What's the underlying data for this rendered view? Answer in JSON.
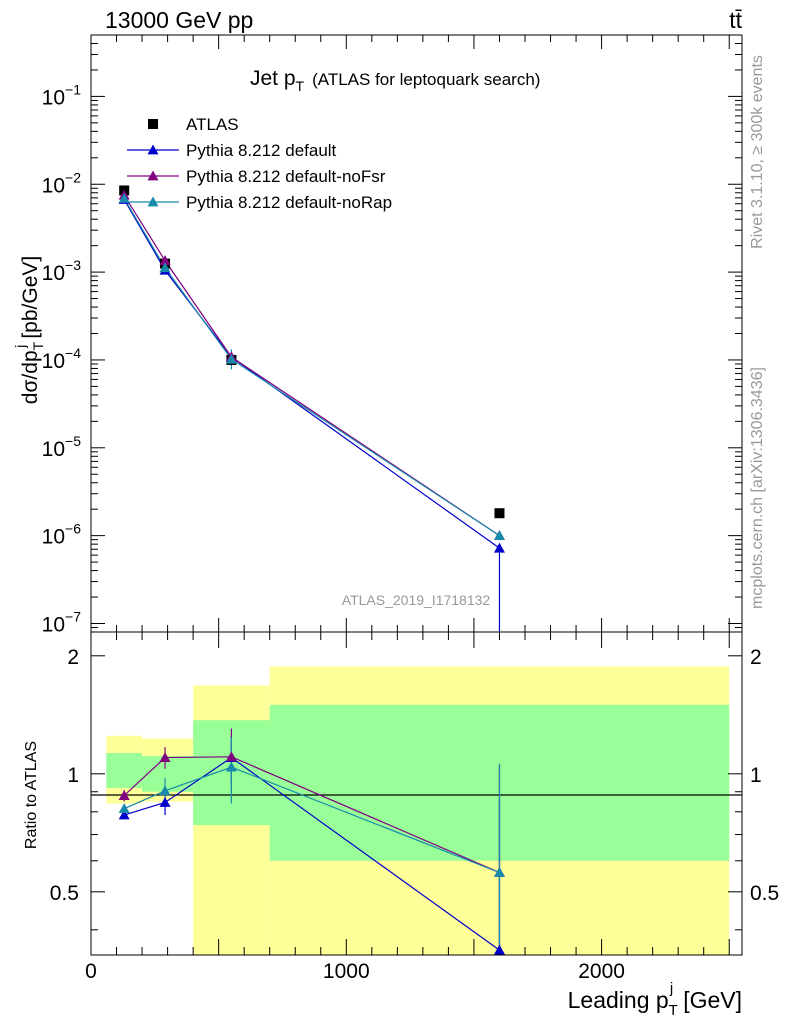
{
  "header": {
    "left": "13000 GeV pp",
    "right": "tt̄"
  },
  "title": {
    "main": "Jet p",
    "sub": "T",
    "rest": "(ATLAS for leptoquark search)"
  },
  "side_labels": {
    "rivet": "Rivet 3.1.10, ≥ 300k events",
    "mcplots": "mcplots.cern.ch [arXiv:1306.3436]"
  },
  "watermark": "ATLAS_2019_I1718132",
  "axes": {
    "ylabel_main_pre": "dσ/dp",
    "ylabel_main_sup": "j",
    "ylabel_main_sub": "T",
    "ylabel_main_post": "[pb/GeV]",
    "ylabel_ratio": "Ratio to ATLAS",
    "xlabel_pre": "Leading p",
    "xlabel_sup": "j",
    "xlabel_sub": "T",
    "xlabel_post": "[GeV]"
  },
  "chart_data": [
    {
      "type": "scatter",
      "title": "Jet pT (ATLAS for leptoquark search)",
      "xlim": [
        0,
        2550
      ],
      "ylim": [
        8e-08,
        0.5
      ],
      "yscale": "log",
      "ytick_labels": [
        {
          "base": "10",
          "exp": "−7",
          "value": 1e-07
        },
        {
          "base": "10",
          "exp": "−6",
          "value": 1e-06
        },
        {
          "base": "10",
          "exp": "−5",
          "value": 1e-05
        },
        {
          "base": "10",
          "exp": "−4",
          "value": 0.0001
        },
        {
          "base": "10",
          "exp": "−3",
          "value": 0.001
        },
        {
          "base": "10",
          "exp": "−2",
          "value": 0.01
        },
        {
          "base": "10",
          "exp": "−1",
          "value": 0.1
        }
      ],
      "legend_position": "top-left",
      "series": [
        {
          "name": "ATLAS",
          "marker": "square",
          "color": "#000000",
          "x": [
            130,
            290,
            550,
            1600
          ],
          "y": [
            0.0085,
            0.00125,
            0.0001,
            1.8e-06
          ]
        },
        {
          "name": "Pythia 8.212 default",
          "marker": "triangle",
          "color": "#0000cc",
          "x": [
            130,
            290,
            550,
            1600
          ],
          "y": [
            0.0067,
            0.00105,
            0.000108,
            7.2e-07
          ]
        },
        {
          "name": "Pythia 8.212 default-noFsr",
          "marker": "triangle",
          "color": "#800080",
          "x": [
            130,
            290,
            550,
            1600
          ],
          "y": [
            0.0075,
            0.00135,
            0.000108,
            1e-06
          ]
        },
        {
          "name": "Pythia 8.212 default-noRap",
          "marker": "triangle",
          "color": "#1a8aab",
          "x": [
            130,
            290,
            550,
            1600
          ],
          "y": [
            0.0069,
            0.00112,
            0.000102,
            1e-06
          ]
        }
      ]
    },
    {
      "type": "line",
      "xlim": [
        0,
        2550
      ],
      "ylim": [
        0.345,
        2.3
      ],
      "yscale": "log",
      "ytick_labels": [
        {
          "label": "0.5",
          "value": 0.5
        },
        {
          "label": "1",
          "value": 1
        },
        {
          "label": "2",
          "value": 2
        }
      ],
      "xtick_labels": [
        {
          "label": "0",
          "value": 0
        },
        {
          "label": "1000",
          "value": 1000
        },
        {
          "label": "2000",
          "value": 2000
        }
      ],
      "bands": [
        {
          "x0": 60,
          "x1": 200,
          "yellow": [
            0.84,
            1.25
          ],
          "green": [
            0.92,
            1.13
          ]
        },
        {
          "x0": 200,
          "x1": 400,
          "yellow": [
            0.85,
            1.23
          ],
          "green": [
            0.9,
            1.11
          ]
        },
        {
          "x0": 400,
          "x1": 700,
          "yellow": [
            0.345,
            1.68
          ],
          "green": [
            0.74,
            1.37
          ]
        },
        {
          "x0": 700,
          "x1": 2500,
          "yellow": [
            0.345,
            1.88
          ],
          "green": [
            0.6,
            1.5
          ]
        }
      ],
      "series": [
        {
          "name": "Pythia 8.212 default",
          "color": "#0000cc",
          "x": [
            130,
            290,
            550,
            1600
          ],
          "y": [
            0.785,
            0.845,
            1.1,
            0.355
          ],
          "err": [
            0.02,
            0.06,
            0.15,
            0.5
          ]
        },
        {
          "name": "Pythia 8.212 default-noFsr",
          "color": "#800080",
          "x": [
            130,
            290,
            550,
            1600
          ],
          "y": [
            0.88,
            1.1,
            1.105,
            0.56
          ],
          "err": [
            0.03,
            0.07,
            0.2,
            0.5
          ]
        },
        {
          "name": "Pythia 8.212 default-noRap",
          "color": "#1a8aab",
          "x": [
            130,
            290,
            550,
            1600
          ],
          "y": [
            0.815,
            0.905,
            1.04,
            0.56
          ],
          "err": [
            0.02,
            0.07,
            0.2,
            0.5
          ]
        }
      ]
    }
  ]
}
